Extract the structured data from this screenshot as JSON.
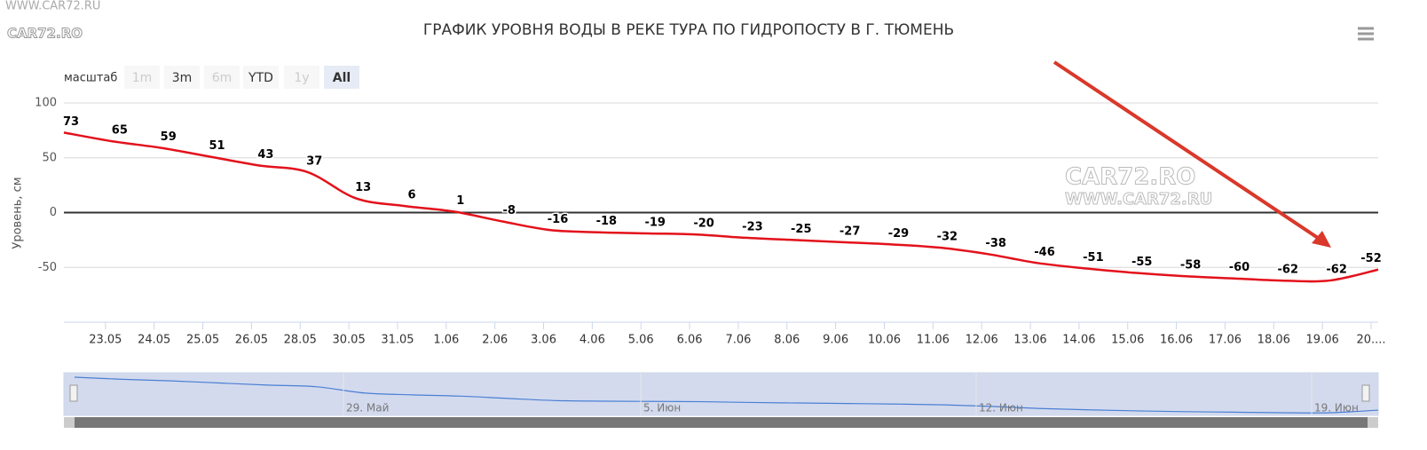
{
  "chart_data": {
    "type": "spline",
    "title": "ГРАФИК УРОВНЯ ВОДЫ В РЕКЕ ТУРА ПО ГИДРОПОСТУ В Г. ТЮМЕНЬ",
    "y_label": "Уровень, см",
    "categories": [
      null,
      "23.05",
      "24.05",
      "25.05",
      "26.05",
      "28.05",
      "30.05",
      "31.05",
      "1.06",
      "2.06",
      "3.06",
      "4.06",
      "5.06",
      "6.06",
      "7.06",
      "8.06",
      "9.06",
      "10.06",
      "11.06",
      "12.06",
      "13.06",
      "14.06",
      "15.06",
      "16.06",
      "17.06",
      "18.06",
      "19.06",
      "20...."
    ],
    "series": [
      {
        "color": "#e3111b",
        "values": [
          73,
          65,
          59,
          51,
          43,
          37,
          13,
          6,
          1,
          -8,
          -16,
          -18,
          -19,
          -20,
          -23,
          -25,
          -27,
          -29,
          -32,
          -38,
          -46,
          -51,
          -55,
          -58,
          -60,
          -62,
          -62,
          -52
        ]
      }
    ],
    "ylim": [
      -100,
      100
    ],
    "yticks": [
      -50,
      0,
      50,
      100
    ],
    "grid": true,
    "range_selector": {
      "label": "масштаб",
      "buttons": [
        "1m",
        "3m",
        "6m",
        "YTD",
        "1y",
        "All"
      ],
      "selected": 5,
      "disabled": [
        0,
        2,
        4
      ]
    },
    "navigator": {
      "color": "#4a7fd4",
      "labels": [
        "29. Май",
        "5. Июн",
        "12. Июн",
        "19. Июн"
      ]
    },
    "watermarks": [
      "WWW.CAR72.RU",
      "CAR72.RO",
      "CAR72.RO",
      "WWW.CAR72.RU"
    ]
  }
}
